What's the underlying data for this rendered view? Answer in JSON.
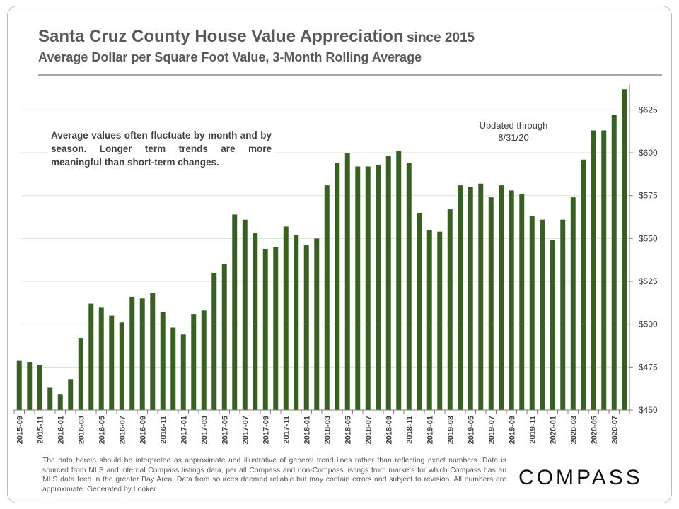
{
  "title_main": "Santa Cruz County House Value Appreciation",
  "title_since": "since 2015",
  "subtitle": "Average Dollar per Square Foot Value, 3-Month Rolling Average",
  "note": "Average values often fluctuate by month and by season. Longer term trends are more meaningful than short-term changes.",
  "updated_line1": "Updated through",
  "updated_line2": "8/31/20",
  "footer": "The data herein should be interpreted as approximate and illustrative of general trend lines rather than reflecting exact numbers. Data is sourced from MLS and internal Compass listings data, per all Compass and non-Compass listings from markets for which Compass has an MLS data feed in the greater Bay Area. Data from sources deemed reliable but may contain errors and subject to revision. All numbers are approximate. Generated by Looker.",
  "logo": "COMPASS",
  "colors": {
    "bar": "#376022",
    "title": "#595959",
    "grid": "#d9e3cf"
  },
  "chart_data": {
    "type": "bar",
    "title": "Santa Cruz County House Value Appreciation since 2015",
    "subtitle": "Average Dollar per Square Foot Value, 3-Month Rolling Average",
    "ylim": [
      450,
      640
    ],
    "yticks": [
      450,
      475,
      500,
      525,
      550,
      575,
      600,
      625
    ],
    "ytick_labels": [
      "$450",
      "$475",
      "$500",
      "$525",
      "$550",
      "$575",
      "$600",
      "$625"
    ],
    "y_axis_position": "right",
    "grid": true,
    "categories": [
      "2015-09",
      "2015-10",
      "2015-11",
      "2015-12",
      "2016-01",
      "2016-02",
      "2016-03",
      "2016-04",
      "2016-05",
      "2016-06",
      "2016-07",
      "2016-08",
      "2016-09",
      "2016-10",
      "2016-11",
      "2016-12",
      "2017-01",
      "2017-02",
      "2017-03",
      "2017-04",
      "2017-05",
      "2017-06",
      "2017-07",
      "2017-08",
      "2017-09",
      "2017-10",
      "2017-11",
      "2017-12",
      "2018-01",
      "2018-02",
      "2018-03",
      "2018-04",
      "2018-05",
      "2018-06",
      "2018-07",
      "2018-08",
      "2018-09",
      "2018-10",
      "2018-11",
      "2018-12",
      "2019-01",
      "2019-02",
      "2019-03",
      "2019-04",
      "2019-05",
      "2019-06",
      "2019-07",
      "2019-08",
      "2019-09",
      "2019-10",
      "2019-11",
      "2019-12",
      "2020-01",
      "2020-02",
      "2020-03",
      "2020-04",
      "2020-05",
      "2020-06",
      "2020-07",
      "2020-08"
    ],
    "xtick_labels": [
      "2015-09",
      "2015-11",
      "2016-01",
      "2016-03",
      "2016-05",
      "2016-07",
      "2016-09",
      "2016-11",
      "2017-01",
      "2017-03",
      "2017-05",
      "2017-07",
      "2017-09",
      "2017-11",
      "2018-01",
      "2018-03",
      "2018-05",
      "2018-07",
      "2018-09",
      "2018-11",
      "2019-01",
      "2019-03",
      "2019-05",
      "2019-07",
      "2019-09",
      "2019-11",
      "2020-01",
      "2020-03",
      "2020-05",
      "2020-07"
    ],
    "values": [
      479,
      478,
      476,
      463,
      459,
      468,
      492,
      512,
      510,
      505,
      501,
      516,
      515,
      518,
      507,
      498,
      494,
      506,
      508,
      530,
      535,
      564,
      561,
      553,
      544,
      545,
      557,
      552,
      546,
      550,
      581,
      594,
      600,
      592,
      592,
      593,
      598,
      601,
      594,
      565,
      555,
      554,
      567,
      581,
      580,
      582,
      574,
      581,
      578,
      576,
      563,
      561,
      549,
      561,
      574,
      596,
      613,
      613,
      622,
      637
    ]
  }
}
